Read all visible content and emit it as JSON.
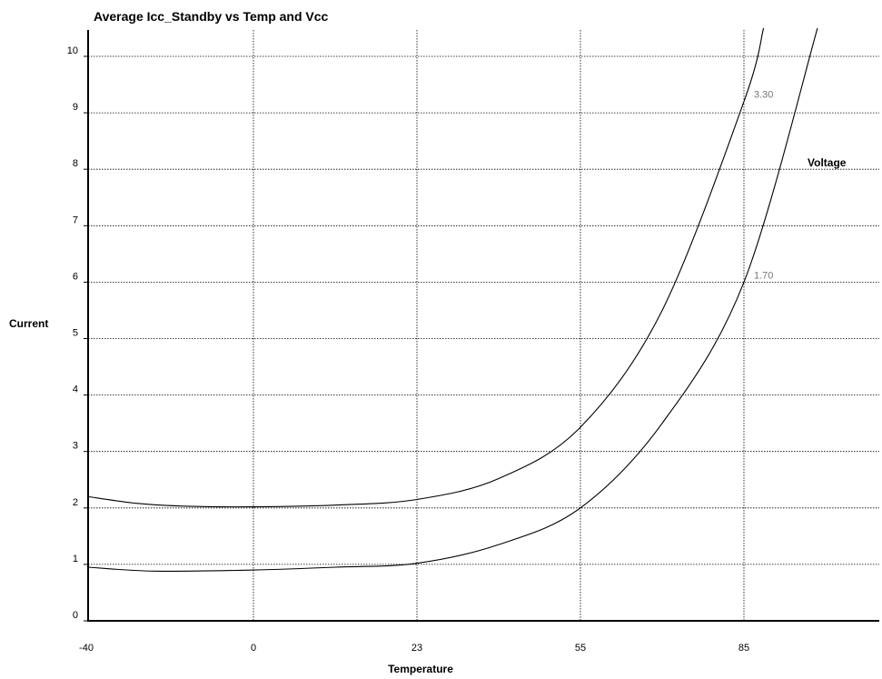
{
  "chart_data": {
    "type": "line",
    "title": "Average Icc_Standby vs Temp and Vcc",
    "xlabel": "Temperature",
    "ylabel": "Current",
    "legend_title": "Voltage",
    "x_categories": [
      "-40",
      "0",
      "23",
      "55",
      "85"
    ],
    "y_ticks": [
      0,
      1,
      2,
      3,
      4,
      5,
      6,
      7,
      8,
      9,
      10
    ],
    "ylim": [
      0,
      10.5
    ],
    "grid": true,
    "series": [
      {
        "name": "3.30",
        "points": [
          [
            0,
            2.2
          ],
          [
            0.3,
            2.08
          ],
          [
            0.6,
            2.03
          ],
          [
            1,
            2.02
          ],
          [
            1.5,
            2.05
          ],
          [
            2,
            2.15
          ],
          [
            2.5,
            2.52
          ],
          [
            3,
            3.43
          ],
          [
            3.5,
            5.5
          ],
          [
            4,
            9.2
          ],
          [
            4.12,
            10.5
          ]
        ]
      },
      {
        "name": "1.70",
        "points": [
          [
            0,
            0.95
          ],
          [
            0.4,
            0.88
          ],
          [
            1,
            0.9
          ],
          [
            1.5,
            0.95
          ],
          [
            2,
            1.02
          ],
          [
            2.5,
            1.35
          ],
          [
            3,
            2.0
          ],
          [
            3.5,
            3.5
          ],
          [
            4,
            6.0
          ],
          [
            4.45,
            10.5
          ]
        ]
      }
    ]
  }
}
